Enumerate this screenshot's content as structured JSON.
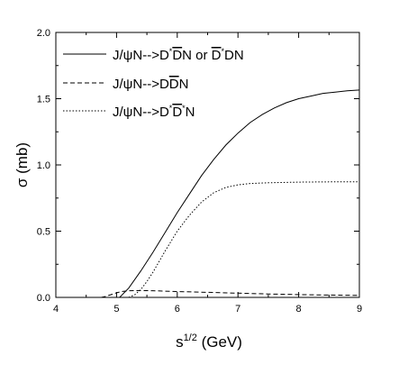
{
  "chart_data": {
    "type": "line",
    "title": "",
    "xlabel": "s^{1/2} (GeV)",
    "ylabel": "σ (mb)",
    "xlim": [
      4,
      9
    ],
    "ylim": [
      0,
      2.0
    ],
    "x_ticks": [
      "4",
      "5",
      "6",
      "7",
      "8",
      "9"
    ],
    "y_ticks": [
      "0.0",
      "0.5",
      "1.0",
      "1.5",
      "2.0"
    ],
    "grid": false,
    "legend_position": "top-left",
    "series": [
      {
        "name": "J/ψN-->D*D̄N or D̄*DN",
        "style": "solid",
        "x": [
          5.05,
          5.2,
          5.4,
          5.6,
          5.8,
          6.0,
          6.2,
          6.4,
          6.6,
          6.8,
          7.0,
          7.2,
          7.4,
          7.6,
          7.8,
          8.0,
          8.2,
          8.4,
          8.6,
          8.8,
          9.0
        ],
        "y": [
          0.0,
          0.07,
          0.2,
          0.34,
          0.49,
          0.64,
          0.78,
          0.92,
          1.04,
          1.15,
          1.24,
          1.32,
          1.38,
          1.43,
          1.47,
          1.5,
          1.52,
          1.54,
          1.55,
          1.56,
          1.565
        ]
      },
      {
        "name": "J/ψN-->DD̄N",
        "style": "dashed",
        "x": [
          4.75,
          4.8,
          4.9,
          5.0,
          5.1,
          5.2,
          5.4,
          5.6,
          5.8,
          6.0,
          6.5,
          7.0,
          7.5,
          8.0,
          8.5,
          9.0
        ],
        "y": [
          0.0,
          0.005,
          0.02,
          0.035,
          0.045,
          0.05,
          0.052,
          0.05,
          0.047,
          0.044,
          0.038,
          0.032,
          0.026,
          0.021,
          0.018,
          0.015
        ]
      },
      {
        "name": "J/ψN-->D*D̄*N",
        "style": "dotted",
        "x": [
          5.2,
          5.3,
          5.4,
          5.5,
          5.6,
          5.7,
          5.8,
          6.0,
          6.2,
          6.4,
          6.6,
          6.8,
          7.0,
          7.2,
          7.5,
          8.0,
          8.5,
          9.0
        ],
        "y": [
          0.0,
          0.02,
          0.06,
          0.12,
          0.19,
          0.27,
          0.35,
          0.5,
          0.62,
          0.72,
          0.79,
          0.83,
          0.85,
          0.86,
          0.865,
          0.87,
          0.872,
          0.873
        ]
      }
    ]
  }
}
